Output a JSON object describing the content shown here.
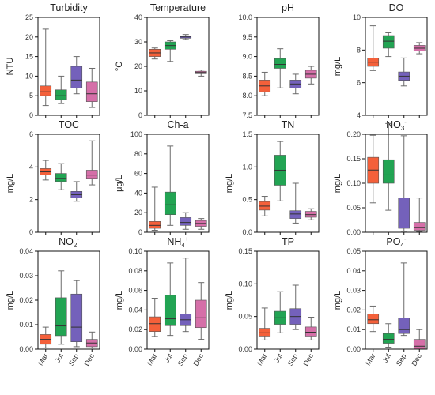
{
  "figure": "boxplot grid",
  "categories": [
    "Mar",
    "Jul",
    "Sep",
    "Dec"
  ],
  "colors": {
    "Mar": "#f4603a",
    "Jul": "#22a453",
    "Sep": "#7461bb",
    "Dec": "#d56fa8",
    "axis": "#111111",
    "whisker": "#6b6b6b"
  },
  "chart_data": [
    {
      "type": "boxplot",
      "title": "Turbidity",
      "title_sub": "",
      "title_sup": "",
      "ylabel": "NTU",
      "ylim": [
        0,
        25
      ],
      "yticks": [
        "0",
        "5",
        "10",
        "15",
        "20",
        "25"
      ],
      "show_xticks": false,
      "series": [
        {
          "category": "Mar",
          "min": 2.5,
          "q1": 5,
          "median": 6,
          "q3": 7.5,
          "max": 22
        },
        {
          "category": "Jul",
          "min": 3,
          "q1": 4,
          "median": 5,
          "q3": 6.5,
          "max": 10
        },
        {
          "category": "Sep",
          "min": 5.5,
          "q1": 7,
          "median": 9,
          "q3": 12.5,
          "max": 15
        },
        {
          "category": "Dec",
          "min": 2,
          "q1": 3.5,
          "median": 5.5,
          "q3": 8.5,
          "max": 12
        }
      ]
    },
    {
      "type": "boxplot",
      "title": "Temperature",
      "title_sub": "",
      "title_sup": "",
      "ylabel": "°C",
      "ylim": [
        0,
        40
      ],
      "yticks": [
        "0",
        "10",
        "20",
        "30",
        "40"
      ],
      "show_xticks": false,
      "series": [
        {
          "category": "Mar",
          "min": 23,
          "q1": 24,
          "median": 25.5,
          "q3": 27,
          "max": 27.5
        },
        {
          "category": "Jul",
          "min": 22,
          "q1": 27,
          "median": 28.5,
          "q3": 30,
          "max": 30.5
        },
        {
          "category": "Sep",
          "min": 31,
          "q1": 31.5,
          "median": 32,
          "q3": 32.3,
          "max": 33
        },
        {
          "category": "Dec",
          "min": 16,
          "q1": 17,
          "median": 17.5,
          "q3": 18,
          "max": 18.5
        }
      ]
    },
    {
      "type": "boxplot",
      "title": "pH",
      "title_sub": "",
      "title_sup": "",
      "ylabel": "",
      "ylim": [
        7.5,
        10
      ],
      "yticks": [
        "7.5",
        "8.0",
        "8.5",
        "9.0",
        "9.5",
        "10.0"
      ],
      "show_xticks": false,
      "series": [
        {
          "category": "Mar",
          "min": 8,
          "q1": 8.1,
          "median": 8.25,
          "q3": 8.4,
          "max": 8.6
        },
        {
          "category": "Jul",
          "min": 8.2,
          "q1": 8.7,
          "median": 8.8,
          "q3": 8.95,
          "max": 9.2
        },
        {
          "category": "Sep",
          "min": 8.05,
          "q1": 8.2,
          "median": 8.3,
          "q3": 8.4,
          "max": 8.55
        },
        {
          "category": "Dec",
          "min": 8.3,
          "q1": 8.45,
          "median": 8.55,
          "q3": 8.65,
          "max": 8.75
        }
      ]
    },
    {
      "type": "boxplot",
      "title": "DO",
      "title_sub": "",
      "title_sup": "",
      "ylabel": "mg/L",
      "ylim": [
        4,
        11
      ],
      "yticks": [
        "4",
        "6",
        "8",
        "10"
      ],
      "show_xticks": false,
      "series": [
        {
          "category": "Mar",
          "min": 7.2,
          "q1": 7.5,
          "median": 7.8,
          "q3": 8.1,
          "max": 10.4
        },
        {
          "category": "Jul",
          "min": 8.2,
          "q1": 8.8,
          "median": 9.3,
          "q3": 9.7,
          "max": 9.9
        },
        {
          "category": "Sep",
          "min": 6.1,
          "q1": 6.5,
          "median": 6.8,
          "q3": 7.1,
          "max": 8.1
        },
        {
          "category": "Dec",
          "min": 8.4,
          "q1": 8.6,
          "median": 8.8,
          "q3": 9,
          "max": 9.2
        }
      ]
    },
    {
      "type": "boxplot",
      "title": "TOC",
      "title_sub": "",
      "title_sup": "",
      "ylabel": "mg/L",
      "ylim": [
        0,
        6
      ],
      "yticks": [
        "0",
        "2",
        "4",
        "6"
      ],
      "show_xticks": false,
      "series": [
        {
          "category": "Mar",
          "min": 3.2,
          "q1": 3.5,
          "median": 3.7,
          "q3": 3.9,
          "max": 4.4
        },
        {
          "category": "Jul",
          "min": 2.6,
          "q1": 3.1,
          "median": 3.3,
          "q3": 3.6,
          "max": 4.2
        },
        {
          "category": "Sep",
          "min": 1.9,
          "q1": 2.1,
          "median": 2.3,
          "q3": 2.5,
          "max": 3.1
        },
        {
          "category": "Dec",
          "min": 2.9,
          "q1": 3.3,
          "median": 3.5,
          "q3": 3.8,
          "max": 5.6
        }
      ]
    },
    {
      "type": "boxplot",
      "title": "Ch-a",
      "title_sub": "",
      "title_sup": "",
      "ylabel": "μg/L",
      "ylim": [
        0,
        100
      ],
      "yticks": [
        "0",
        "20",
        "40",
        "60",
        "80",
        "100"
      ],
      "show_xticks": false,
      "series": [
        {
          "category": "Mar",
          "min": 2,
          "q1": 4,
          "median": 7,
          "q3": 11,
          "max": 46
        },
        {
          "category": "Jul",
          "min": 7,
          "q1": 18,
          "median": 28,
          "q3": 41,
          "max": 88
        },
        {
          "category": "Sep",
          "min": 3,
          "q1": 7,
          "median": 10,
          "q3": 15,
          "max": 20
        },
        {
          "category": "Dec",
          "min": 3,
          "q1": 6,
          "median": 9,
          "q3": 12,
          "max": 14
        }
      ]
    },
    {
      "type": "boxplot",
      "title": "TN",
      "title_sub": "",
      "title_sup": "",
      "ylabel": "mg/L",
      "ylim": [
        0,
        1.5
      ],
      "yticks": [
        "0.0",
        "0.5",
        "1.0",
        "1.5"
      ],
      "show_xticks": false,
      "series": [
        {
          "category": "Mar",
          "min": 0.25,
          "q1": 0.34,
          "median": 0.4,
          "q3": 0.47,
          "max": 0.55
        },
        {
          "category": "Jul",
          "min": 0.48,
          "q1": 0.72,
          "median": 0.95,
          "q3": 1.18,
          "max": 1.39
        },
        {
          "category": "Sep",
          "min": 0.14,
          "q1": 0.21,
          "median": 0.28,
          "q3": 0.33,
          "max": 0.75
        },
        {
          "category": "Dec",
          "min": 0.19,
          "q1": 0.23,
          "median": 0.27,
          "q3": 0.32,
          "max": 0.36
        }
      ]
    },
    {
      "type": "boxplot",
      "title": "NO",
      "title_sub": "3",
      "title_sup": "-",
      "ylabel": "mg/L",
      "ylim": [
        0,
        0.2
      ],
      "yticks": [
        "0.00",
        "0.05",
        "0.10",
        "0.15",
        "0.20"
      ],
      "show_xticks": false,
      "series": [
        {
          "category": "Mar",
          "min": 0.06,
          "q1": 0.1,
          "median": 0.127,
          "q3": 0.153,
          "max": 0.198
        },
        {
          "category": "Jul",
          "min": 0.045,
          "q1": 0.1,
          "median": 0.117,
          "q3": 0.148,
          "max": 0.222
        },
        {
          "category": "Sep",
          "min": 0.002,
          "q1": 0.008,
          "median": 0.025,
          "q3": 0.07,
          "max": 0.197
        },
        {
          "category": "Dec",
          "min": 0.001,
          "q1": 0.004,
          "median": 0.01,
          "q3": 0.02,
          "max": 0.07
        }
      ]
    },
    {
      "type": "boxplot",
      "title": "NO",
      "title_sub": "2",
      "title_sup": "-",
      "ylabel": "mg/L",
      "ylim": [
        0,
        0.04
      ],
      "yticks": [
        "0.00",
        "0.01",
        "0.02",
        "0.03",
        "0.04"
      ],
      "show_xticks": true,
      "series": [
        {
          "category": "Mar",
          "min": 0.0005,
          "q1": 0.002,
          "median": 0.004,
          "q3": 0.006,
          "max": 0.009
        },
        {
          "category": "Jul",
          "min": 0.002,
          "q1": 0.0055,
          "median": 0.0095,
          "q3": 0.021,
          "max": 0.032
        },
        {
          "category": "Sep",
          "min": 0.001,
          "q1": 0.003,
          "median": 0.009,
          "q3": 0.0225,
          "max": 0.028
        },
        {
          "category": "Dec",
          "min": 0.0005,
          "q1": 0.001,
          "median": 0.0025,
          "q3": 0.004,
          "max": 0.007
        }
      ]
    },
    {
      "type": "boxplot",
      "title": "NH",
      "title_sub": "4",
      "title_sup": "+",
      "ylabel": "mg/L",
      "ylim": [
        0,
        0.1
      ],
      "yticks": [
        "0.00",
        "0.02",
        "0.04",
        "0.06",
        "0.08",
        "0.10"
      ],
      "show_xticks": true,
      "series": [
        {
          "category": "Mar",
          "min": 0.013,
          "q1": 0.018,
          "median": 0.026,
          "q3": 0.033,
          "max": 0.052
        },
        {
          "category": "Jul",
          "min": 0.014,
          "q1": 0.024,
          "median": 0.031,
          "q3": 0.055,
          "max": 0.088
        },
        {
          "category": "Sep",
          "min": 0.018,
          "q1": 0.024,
          "median": 0.03,
          "q3": 0.036,
          "max": 0.093
        },
        {
          "category": "Dec",
          "min": 0.01,
          "q1": 0.022,
          "median": 0.032,
          "q3": 0.05,
          "max": 0.068
        }
      ]
    },
    {
      "type": "boxplot",
      "title": "TP",
      "title_sub": "",
      "title_sup": "",
      "ylabel": "mg/L",
      "ylim": [
        0,
        0.15
      ],
      "yticks": [
        "0.00",
        "0.05",
        "0.10",
        "0.15"
      ],
      "show_xticks": true,
      "series": [
        {
          "category": "Mar",
          "min": 0.014,
          "q1": 0.02,
          "median": 0.025,
          "q3": 0.032,
          "max": 0.063
        },
        {
          "category": "Jul",
          "min": 0.025,
          "q1": 0.038,
          "median": 0.048,
          "q3": 0.058,
          "max": 0.088
        },
        {
          "category": "Sep",
          "min": 0.03,
          "q1": 0.038,
          "median": 0.05,
          "q3": 0.062,
          "max": 0.098
        },
        {
          "category": "Dec",
          "min": 0.014,
          "q1": 0.02,
          "median": 0.026,
          "q3": 0.034,
          "max": 0.049
        }
      ]
    },
    {
      "type": "boxplot",
      "title": "PO",
      "title_sub": "4",
      "title_sup": "-",
      "ylabel": "mg/L",
      "ylim": [
        0,
        0.05
      ],
      "yticks": [
        "0.00",
        "0.01",
        "0.02",
        "0.03",
        "0.04",
        "0.05"
      ],
      "show_xticks": true,
      "series": [
        {
          "category": "Mar",
          "min": 0.009,
          "q1": 0.013,
          "median": 0.015,
          "q3": 0.018,
          "max": 0.022
        },
        {
          "category": "Jul",
          "min": 0.001,
          "q1": 0.003,
          "median": 0.005,
          "q3": 0.008,
          "max": 0.013
        },
        {
          "category": "Sep",
          "min": 0.007,
          "q1": 0.008,
          "median": 0.01,
          "q3": 0.016,
          "max": 0.044
        },
        {
          "category": "Dec",
          "min": 0,
          "q1": 0,
          "median": 0.0015,
          "q3": 0.005,
          "max": 0.01
        }
      ]
    }
  ]
}
